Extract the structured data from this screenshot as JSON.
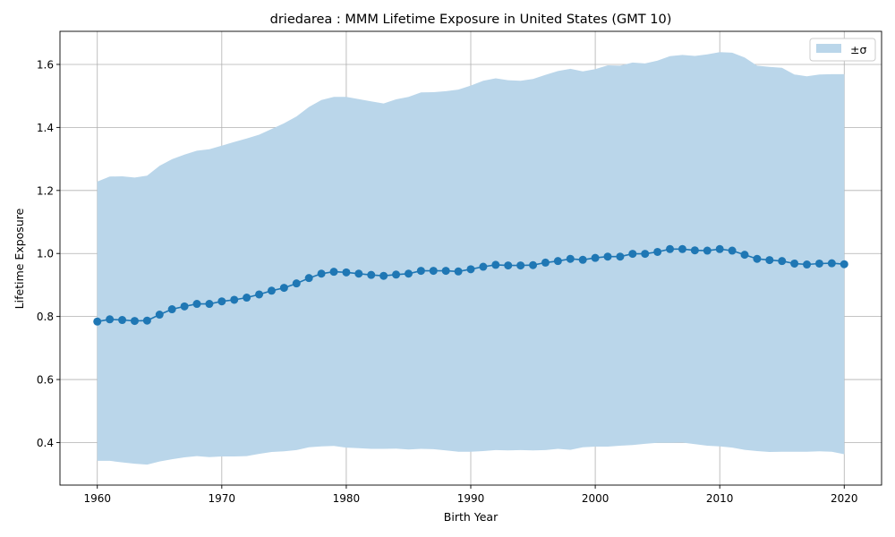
{
  "chart_data": {
    "type": "line",
    "title": "driedarea : MMM Lifetime Exposure in United States (GMT 10)",
    "xlabel": "Birth Year",
    "ylabel": "Lifetime Exposure",
    "xlim": [
      1957,
      2023
    ],
    "ylim": [
      0.265,
      1.705
    ],
    "xticks": [
      1960,
      1970,
      1980,
      1990,
      2000,
      2010,
      2020
    ],
    "yticks": [
      0.4,
      0.6,
      0.8,
      1.0,
      1.2,
      1.4,
      1.6
    ],
    "grid": true,
    "legend_position": "top-right",
    "legend": [
      "±σ"
    ],
    "colors": {
      "line": "#1f77b4",
      "band": "#bad6ea",
      "grid": "#b0b0b0"
    },
    "x": [
      1960,
      1961,
      1962,
      1963,
      1964,
      1965,
      1966,
      1967,
      1968,
      1969,
      1970,
      1971,
      1972,
      1973,
      1974,
      1975,
      1976,
      1977,
      1978,
      1979,
      1980,
      1981,
      1982,
      1983,
      1984,
      1985,
      1986,
      1987,
      1988,
      1989,
      1990,
      1991,
      1992,
      1993,
      1994,
      1995,
      1996,
      1997,
      1998,
      1999,
      2000,
      2001,
      2002,
      2003,
      2004,
      2005,
      2006,
      2007,
      2008,
      2009,
      2010,
      2011,
      2012,
      2013,
      2014,
      2015,
      2016,
      2017,
      2018,
      2019,
      2020
    ],
    "series": [
      {
        "values": [
          0.784,
          0.791,
          0.789,
          0.786,
          0.787,
          0.806,
          0.823,
          0.832,
          0.84,
          0.84,
          0.848,
          0.853,
          0.86,
          0.87,
          0.882,
          0.891,
          0.905,
          0.922,
          0.936,
          0.942,
          0.94,
          0.936,
          0.932,
          0.929,
          0.933,
          0.936,
          0.945,
          0.945,
          0.945,
          0.943,
          0.95,
          0.958,
          0.964,
          0.962,
          0.962,
          0.963,
          0.971,
          0.976,
          0.983,
          0.98,
          0.986,
          0.99,
          0.99,
          0.999,
          0.999,
          1.005,
          1.014,
          1.014,
          1.01,
          1.009,
          1.014,
          1.009,
          0.996,
          0.983,
          0.979,
          0.976,
          0.968,
          0.965,
          0.968,
          0.969,
          0.966
        ]
      }
    ],
    "band": {
      "upper": [
        1.228,
        1.244,
        1.245,
        1.241,
        1.247,
        1.278,
        1.299,
        1.314,
        1.326,
        1.331,
        1.342,
        1.354,
        1.365,
        1.377,
        1.395,
        1.413,
        1.435,
        1.465,
        1.487,
        1.497,
        1.497,
        1.49,
        1.483,
        1.476,
        1.489,
        1.497,
        1.511,
        1.512,
        1.515,
        1.52,
        1.533,
        1.548,
        1.556,
        1.55,
        1.548,
        1.554,
        1.567,
        1.579,
        1.586,
        1.578,
        1.585,
        1.597,
        1.596,
        1.606,
        1.603,
        1.612,
        1.626,
        1.63,
        1.627,
        1.632,
        1.639,
        1.637,
        1.622,
        1.596,
        1.592,
        1.589,
        1.568,
        1.562,
        1.568,
        1.569,
        1.569
      ],
      "lower": [
        0.342,
        0.342,
        0.337,
        0.333,
        0.33,
        0.34,
        0.347,
        0.353,
        0.357,
        0.354,
        0.356,
        0.356,
        0.357,
        0.364,
        0.37,
        0.372,
        0.376,
        0.385,
        0.388,
        0.389,
        0.384,
        0.382,
        0.38,
        0.38,
        0.381,
        0.378,
        0.38,
        0.379,
        0.375,
        0.371,
        0.371,
        0.373,
        0.376,
        0.375,
        0.376,
        0.375,
        0.376,
        0.38,
        0.377,
        0.385,
        0.387,
        0.387,
        0.39,
        0.392,
        0.396,
        0.399,
        0.399,
        0.4,
        0.395,
        0.39,
        0.388,
        0.384,
        0.377,
        0.373,
        0.37,
        0.371,
        0.371,
        0.371,
        0.372,
        0.371,
        0.363
      ]
    }
  }
}
